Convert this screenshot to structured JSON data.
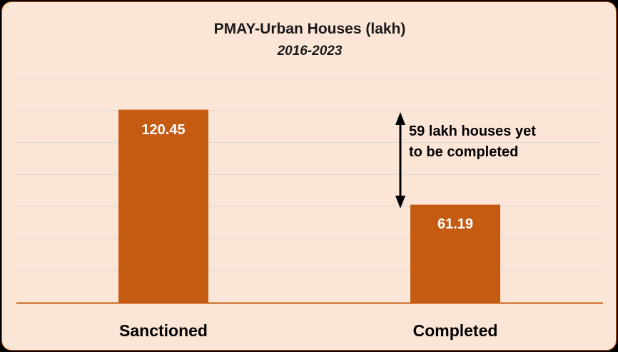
{
  "chart_data": {
    "type": "bar",
    "title": "PMAY-Urban Houses (lakh)",
    "subtitle": "2016-2023",
    "categories": [
      "Sanctioned",
      "Completed"
    ],
    "values": [
      120.45,
      61.19
    ],
    "value_labels": [
      "120.45",
      "61.19"
    ],
    "ylim": [
      0,
      140
    ],
    "grid": true,
    "annotation": {
      "lines": [
        "59 lakh houses yet",
        "to be completed"
      ]
    }
  },
  "colors": {
    "bar": "#C55A11",
    "background": "#FBE5D6",
    "gridline": "#D9D9D9",
    "axis": "#C55A11",
    "arrow": "#000000"
  }
}
